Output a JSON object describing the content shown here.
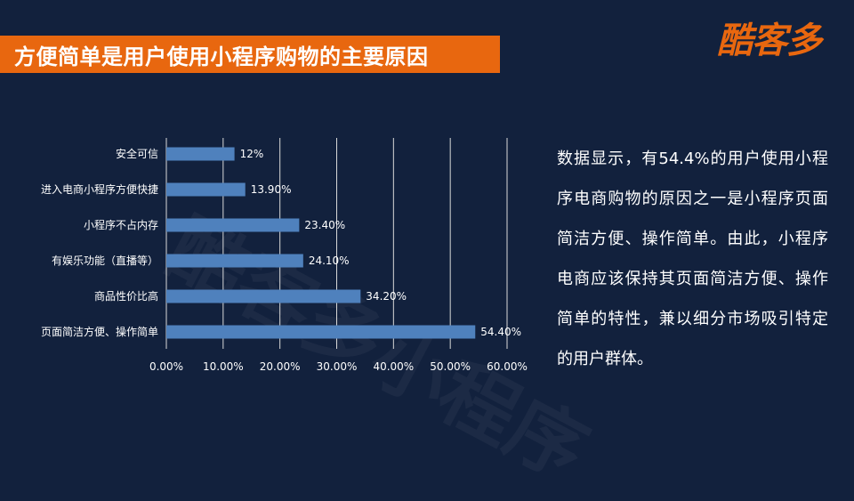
{
  "header": {
    "title": "方便简单是用户使用小程序购物的主要原因",
    "logo_text": "酷客多",
    "watermark": "酷客多小程序"
  },
  "description": "数据显示，有54.4%的用户使用小程序电商购物的原因之一是小程序页面简洁方便、操作简单。由此，小程序电商应该保持其页面简洁方便、操作简单的特性，兼以细分市场吸引特定的用户群体。",
  "colors": {
    "background": "#12213d",
    "accent": "#e8670f",
    "bar": "#4f81bd"
  },
  "chart_data": {
    "type": "bar",
    "orientation": "horizontal",
    "categories": [
      "安全可信",
      "进入电商小程序方便快捷",
      "小程序不占内存",
      "有娱乐功能（直播等）",
      "商品性价比高",
      "页面简洁方便、操作简单"
    ],
    "values": [
      12.0,
      13.9,
      23.4,
      24.1,
      34.2,
      54.4
    ],
    "data_labels": [
      "12%",
      "13.90%",
      "23.40%",
      "24.10%",
      "34.20%",
      "54.40%"
    ],
    "x_ticks": [
      "0.00%",
      "10.00%",
      "20.00%",
      "30.00%",
      "40.00%",
      "50.00%",
      "60.00%"
    ],
    "xlim": [
      0,
      60
    ],
    "grid": "vertical",
    "title": "",
    "xlabel": "",
    "ylabel": ""
  }
}
